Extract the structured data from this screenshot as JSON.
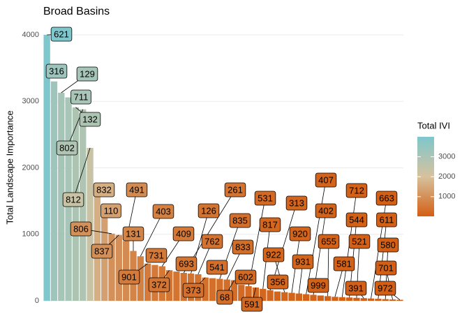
{
  "chart_data": {
    "type": "bar",
    "title": "Broad Basins",
    "y_label": "Total Landscape Importance",
    "categories": [
      "621",
      "316",
      "129",
      "711",
      "132",
      "802",
      "812",
      "832",
      "110",
      "806",
      "837",
      "491",
      "131",
      "403",
      "901",
      "731",
      "409",
      "372",
      "693",
      "261",
      "126",
      "762",
      "373",
      "541",
      "835",
      "833",
      "68",
      "602",
      "531",
      "591",
      "817",
      "313",
      "356",
      "922",
      "920",
      "931",
      "407",
      "402",
      "999",
      "655",
      "581",
      "712",
      "544",
      "521",
      "391",
      "663",
      "611",
      "580",
      "701",
      "972"
    ],
    "values": [
      4000,
      3300,
      3130,
      3060,
      2910,
      2880,
      2300,
      1600,
      1330,
      1010,
      990,
      900,
      750,
      670,
      560,
      540,
      520,
      460,
      440,
      420,
      410,
      400,
      350,
      340,
      330,
      320,
      310,
      240,
      220,
      200,
      180,
      160,
      140,
      130,
      120,
      110,
      100,
      90,
      80,
      70,
      60,
      55,
      50,
      45,
      40,
      35,
      30,
      25,
      20,
      15
    ],
    "ylim": [
      0,
      4000
    ],
    "yticks": [
      0,
      1000,
      2000,
      3000,
      4000
    ],
    "grid": true,
    "legend": {
      "title": "Total IVI",
      "ticks": [
        1000,
        2000,
        3000
      ],
      "position": "right"
    },
    "colors": [
      "#d35f14",
      "#d6c29e",
      "#7ec7cd"
    ]
  }
}
